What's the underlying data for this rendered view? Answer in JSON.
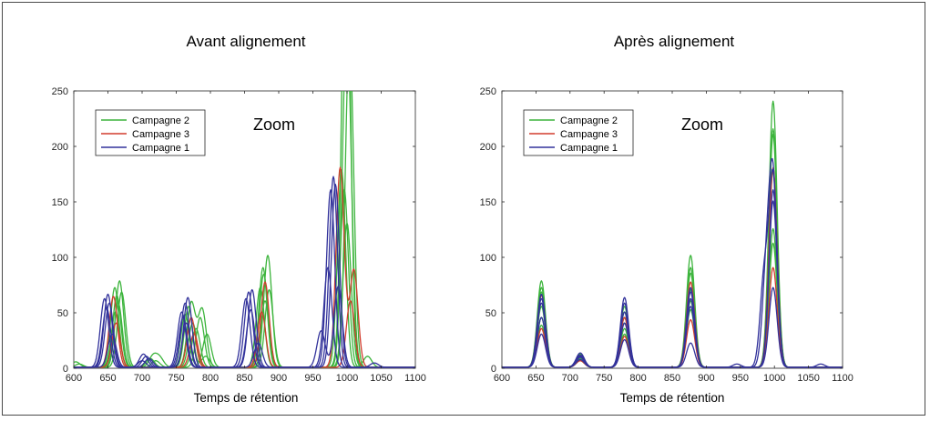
{
  "colors": {
    "campagne2": "#3cb43c",
    "campagne3": "#d23c2d",
    "campagne1": "#32329b",
    "axis": "#262626",
    "background": "#ffffff"
  },
  "chart_data": [
    {
      "type": "line",
      "title": "Avant alignement",
      "annotation": "Zoom",
      "xlabel": "Temps de rétention",
      "ylabel": "",
      "xlim": [
        600,
        1100
      ],
      "ylim": [
        0,
        250
      ],
      "xticks": [
        "600",
        "650",
        "700",
        "750",
        "800",
        "850",
        "900",
        "950",
        "1000",
        "1050",
        "1100"
      ],
      "yticks": [
        "0",
        "50",
        "100",
        "150",
        "200",
        "250"
      ],
      "grid": false,
      "legend_position": "top-left",
      "legend": [
        "Campagne 2",
        "Campagne 3",
        "Campagne 1"
      ],
      "series": [
        {
          "name": "Campagne 2",
          "color": "#3cb43c",
          "peaks": [
            [
              663,
              65
            ],
            [
              768,
              55
            ],
            [
              793,
              10
            ],
            [
              877,
              90
            ],
            [
              998,
              215
            ],
            [
              1003,
              118
            ],
            [
              603,
              5
            ]
          ]
        },
        {
          "name": "Campagne 2",
          "color": "#3cb43c",
          "peaks": [
            [
              667,
              78
            ],
            [
              772,
              58
            ],
            [
              788,
              52
            ],
            [
              884,
              101
            ],
            [
              999,
              240
            ],
            [
              998,
              200
            ]
          ]
        },
        {
          "name": "Campagne 2",
          "color": "#3cb43c",
          "peaks": [
            [
              660,
              72
            ],
            [
              763,
              48
            ],
            [
              795,
              30
            ],
            [
              878,
              84
            ],
            [
              1003,
              210
            ],
            [
              1005,
              90
            ],
            [
              712,
              8
            ]
          ]
        },
        {
          "name": "Campagne 2",
          "color": "#3cb43c",
          "peaks": [
            [
              665,
              58
            ],
            [
              774,
              40
            ],
            [
              716,
              10
            ],
            [
              726,
              8
            ],
            [
              886,
              70
            ],
            [
              992,
              178
            ],
            [
              1030,
              10
            ]
          ]
        },
        {
          "name": "Campagne 2",
          "color": "#3cb43c",
          "peaks": [
            [
              670,
              68
            ],
            [
              785,
              45
            ],
            [
              873,
              72
            ],
            [
              1000,
              130
            ],
            [
              720,
              6
            ]
          ]
        },
        {
          "name": "Campagne 2",
          "color": "#3cb43c",
          "peaks": [
            [
              661,
              50
            ],
            [
              779,
              35
            ],
            [
              880,
              60
            ],
            [
              996,
              160
            ],
            [
              608,
              3
            ]
          ]
        },
        {
          "name": "Campagne 3",
          "color": "#d23c2d",
          "peaks": [
            [
              658,
              64
            ],
            [
              772,
              45
            ],
            [
              880,
              77
            ],
            [
              1010,
              88
            ],
            [
              990,
              180
            ]
          ]
        },
        {
          "name": "Campagne 3",
          "color": "#d23c2d",
          "peaks": [
            [
              662,
              40
            ],
            [
              776,
              30
            ],
            [
              875,
              50
            ],
            [
              1005,
              60
            ]
          ]
        },
        {
          "name": "Campagne 1",
          "color": "#32329b",
          "peaks": [
            [
              645,
              62
            ],
            [
              758,
              50
            ],
            [
              856,
              68
            ],
            [
              976,
              160
            ],
            [
              702,
              12
            ]
          ]
        },
        {
          "name": "Campagne 1",
          "color": "#32329b",
          "peaks": [
            [
              650,
              66
            ],
            [
              763,
              58
            ],
            [
              861,
              70
            ],
            [
              980,
              172
            ],
            [
              706,
              10
            ]
          ]
        },
        {
          "name": "Campagne 1",
          "color": "#32329b",
          "peaks": [
            [
              652,
              58
            ],
            [
              767,
              63
            ],
            [
              859,
              52
            ],
            [
              983,
              165
            ],
            [
              710,
              8
            ]
          ]
        },
        {
          "name": "Campagne 1",
          "color": "#32329b",
          "peaks": [
            [
              656,
              30
            ],
            [
              765,
              40
            ],
            [
              870,
              22
            ],
            [
              987,
              73
            ],
            [
              962,
              33
            ],
            [
              700,
              6
            ]
          ]
        },
        {
          "name": "Campagne 1",
          "color": "#32329b",
          "peaks": [
            [
              648,
              54
            ],
            [
              760,
              45
            ],
            [
              852,
              62
            ],
            [
              972,
              90
            ],
            [
              1040,
              4
            ]
          ]
        }
      ]
    },
    {
      "type": "line",
      "title": "Après alignement",
      "annotation": "Zoom",
      "xlabel": "Temps de rétention",
      "ylabel": "",
      "xlim": [
        600,
        1100
      ],
      "ylim": [
        0,
        250
      ],
      "xticks": [
        "600",
        "650",
        "700",
        "750",
        "800",
        "850",
        "900",
        "950",
        "1000",
        "1050",
        "1100"
      ],
      "yticks": [
        "0",
        "50",
        "100",
        "150",
        "200",
        "250"
      ],
      "grid": false,
      "legend_position": "top-left",
      "legend": [
        "Campagne 2",
        "Campagne 3",
        "Campagne 1"
      ],
      "series": [
        {
          "name": "Campagne 2",
          "color": "#3cb43c",
          "peaks": [
            [
              658,
              78
            ],
            [
              715,
              12
            ],
            [
              780,
              55
            ],
            [
              877,
              101
            ],
            [
              998,
              240
            ]
          ]
        },
        {
          "name": "Campagne 2",
          "color": "#3cb43c",
          "peaks": [
            [
              658,
              72
            ],
            [
              715,
              10
            ],
            [
              780,
              50
            ],
            [
              877,
              90
            ],
            [
              998,
              215
            ]
          ]
        },
        {
          "name": "Campagne 2",
          "color": "#3cb43c",
          "peaks": [
            [
              658,
              68
            ],
            [
              715,
              10
            ],
            [
              780,
              45
            ],
            [
              877,
              85
            ],
            [
              998,
              210
            ]
          ]
        },
        {
          "name": "Campagne 2",
          "color": "#3cb43c",
          "peaks": [
            [
              658,
              55
            ],
            [
              715,
              8
            ],
            [
              780,
              40
            ],
            [
              877,
              70
            ],
            [
              998,
              178
            ]
          ]
        },
        {
          "name": "Campagne 2",
          "color": "#3cb43c",
          "peaks": [
            [
              658,
              45
            ],
            [
              715,
              7
            ],
            [
              780,
              35
            ],
            [
              877,
              60
            ],
            [
              998,
              125
            ]
          ]
        },
        {
          "name": "Campagne 2",
          "color": "#3cb43c",
          "peaks": [
            [
              658,
              38
            ],
            [
              715,
              6
            ],
            [
              780,
              30
            ],
            [
              877,
              52
            ],
            [
              998,
              112
            ]
          ]
        },
        {
          "name": "Campagne 3",
          "color": "#d23c2d",
          "peaks": [
            [
              658,
              65
            ],
            [
              715,
              10
            ],
            [
              780,
              45
            ],
            [
              877,
              77
            ],
            [
              998,
              180
            ]
          ]
        },
        {
          "name": "Campagne 3",
          "color": "#d23c2d",
          "peaks": [
            [
              658,
              35
            ],
            [
              715,
              6
            ],
            [
              780,
              28
            ],
            [
              877,
              43
            ],
            [
              998,
              90
            ]
          ]
        },
        {
          "name": "Campagne 1",
          "color": "#32329b",
          "peaks": [
            [
              658,
              66
            ],
            [
              715,
              13
            ],
            [
              780,
              63
            ],
            [
              877,
              72
            ],
            [
              998,
              170
            ],
            [
              985,
              80
            ]
          ]
        },
        {
          "name": "Campagne 1",
          "color": "#32329b",
          "peaks": [
            [
              658,
              62
            ],
            [
              715,
              11
            ],
            [
              780,
              58
            ],
            [
              877,
              68
            ],
            [
              998,
              165
            ],
            [
              988,
              78
            ]
          ]
        },
        {
          "name": "Campagne 1",
          "color": "#32329b",
          "peaks": [
            [
              658,
              58
            ],
            [
              715,
              10
            ],
            [
              780,
              50
            ],
            [
              877,
              62
            ],
            [
              998,
              160
            ]
          ]
        },
        {
          "name": "Campagne 1",
          "color": "#32329b",
          "peaks": [
            [
              658,
              30
            ],
            [
              715,
              7
            ],
            [
              780,
              25
            ],
            [
              877,
              22
            ],
            [
              998,
              72
            ],
            [
              945,
              3
            ]
          ]
        },
        {
          "name": "Campagne 1",
          "color": "#32329b",
          "peaks": [
            [
              658,
              45
            ],
            [
              715,
              9
            ],
            [
              780,
              40
            ],
            [
              877,
              55
            ],
            [
              998,
              150
            ],
            [
              1068,
              3
            ]
          ]
        }
      ]
    }
  ]
}
